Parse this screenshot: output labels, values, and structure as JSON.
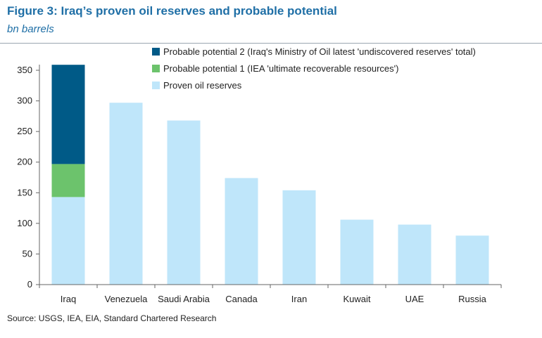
{
  "header": {
    "title": "Figure 3: Iraq’s proven oil reserves and probable potential",
    "subtitle": "bn barrels"
  },
  "footer": {
    "source": "Source: USGS, IEA, EIA, Standard Chartered Research"
  },
  "colors": {
    "proven": "#bfe6fa",
    "probable1": "#6cc36c",
    "probable2": "#005a87",
    "axis": "#666666"
  },
  "chart_data": {
    "type": "bar",
    "stacked": true,
    "title": "",
    "xlabel": "",
    "ylabel": "",
    "ylim": [
      0,
      350
    ],
    "yticks": [
      0,
      50,
      100,
      150,
      200,
      250,
      300,
      350
    ],
    "grid": false,
    "legend_position": "top-left",
    "categories": [
      "Iraq",
      "Venezuela",
      "Saudi Arabia",
      "Canada",
      "Iran",
      "Kuwait",
      "UAE",
      "Russia"
    ],
    "series": [
      {
        "name": "Proven oil reserves",
        "color_key": "proven",
        "values": [
          143,
          297,
          268,
          174,
          154,
          106,
          98,
          80
        ]
      },
      {
        "name": "Probable potential 1 (IEA 'ultimate recoverable resources')",
        "color_key": "probable1",
        "values": [
          54,
          0,
          0,
          0,
          0,
          0,
          0,
          0
        ]
      },
      {
        "name": "Probable potential 2 (Iraq's Ministry of Oil latest 'undiscovered reserves' total)",
        "color_key": "probable2",
        "values": [
          162,
          0,
          0,
          0,
          0,
          0,
          0,
          0
        ]
      }
    ]
  }
}
